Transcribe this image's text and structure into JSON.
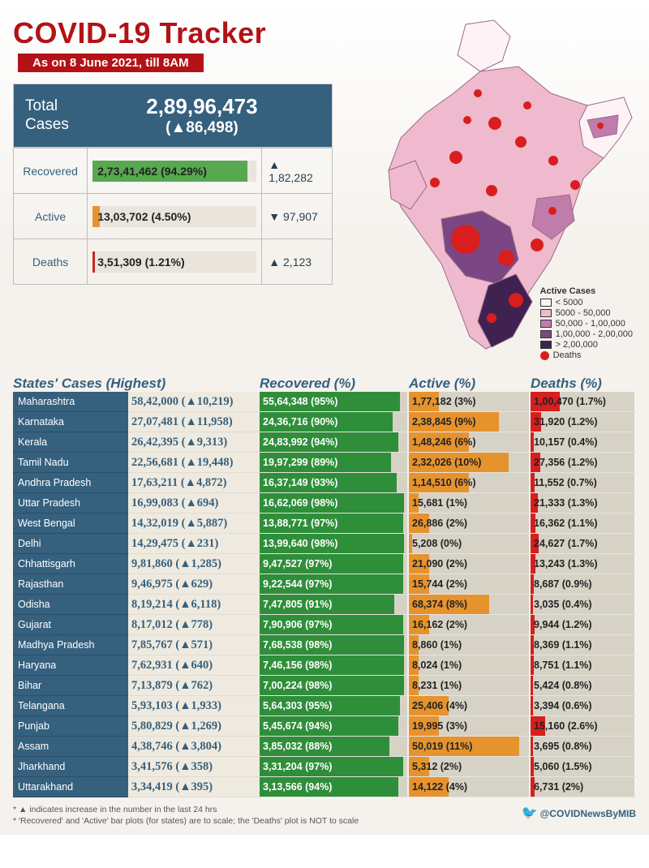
{
  "title": "COVID-19 Tracker",
  "date_band": "As on 8 June 2021, till 8AM",
  "total": {
    "label": "Total\nCases",
    "value": "2,89,96,473",
    "delta": "(▲86,498)"
  },
  "summary": [
    {
      "label": "Recovered",
      "value": "2,73,41,462 (94.29%)",
      "pct": 94.29,
      "delta": "▲ 1,82,282",
      "color": "#57a84f"
    },
    {
      "label": "Active",
      "value": "13,03,702 (4.50%)",
      "pct": 4.5,
      "delta": "▼ 97,907",
      "color": "#e6932e"
    },
    {
      "label": "Deaths",
      "value": "3,51,309 (1.21%)",
      "pct": 1.21,
      "delta": "▲ 2,123",
      "color": "#c62828"
    }
  ],
  "legend": {
    "title": "Active Cases",
    "bands": [
      {
        "label": "< 5000",
        "color": "#fef2f6"
      },
      {
        "label": "5000 - 50,000",
        "color": "#efb9ce"
      },
      {
        "label": "50,000 - 1,00,000",
        "color": "#c07dab"
      },
      {
        "label": "1,00,000 - 2,00,000",
        "color": "#7b4684"
      },
      {
        "label": "> 2,00,000",
        "color": "#3f2250"
      }
    ],
    "deaths": {
      "label": "Deaths",
      "color": "#d81e1e"
    }
  },
  "map_shading": {
    "base": "#efb9ce",
    "south_dark": "#3f2250",
    "south_mid": "#7b4684",
    "pale": "#fef2f6",
    "dot": "#d81e1e"
  },
  "headers": {
    "state": "States' Cases (Highest)",
    "recovered": "Recovered (%)",
    "active": "Active (%)",
    "deaths": "Deaths (%)"
  },
  "bar_colors": {
    "recovered": "#2f8e3a",
    "active": "#e6932e",
    "deaths": "#d81e1e",
    "track": "#d7d2c6"
  },
  "states": [
    {
      "name": "Maharashtra",
      "cases": "58,42,000",
      "delta": "10,219",
      "rec": "55,64,348",
      "rec_pct": 95,
      "act": "1,77,182",
      "act_pct": 3,
      "dth": "1,00,470",
      "dth_pct": 1.7,
      "dth_bar": 28
    },
    {
      "name": "Karnataka",
      "cases": "27,07,481",
      "delta": "11,958",
      "rec": "24,36,716",
      "rec_pct": 90,
      "act": "2,38,845",
      "act_pct": 9,
      "dth": "31,920",
      "dth_pct": 1.2,
      "dth_bar": 10
    },
    {
      "name": "Kerala",
      "cases": "26,42,395",
      "delta": "9,313",
      "rec": "24,83,992",
      "rec_pct": 94,
      "act": "1,48,246",
      "act_pct": 6,
      "dth": "10,157",
      "dth_pct": 0.4,
      "dth_bar": 3
    },
    {
      "name": "Tamil Nadu",
      "cases": "22,56,681",
      "delta": "19,448",
      "rec": "19,97,299",
      "rec_pct": 89,
      "act": "2,32,026",
      "act_pct": 10,
      "dth": "27,356",
      "dth_pct": 1.2,
      "dth_bar": 9
    },
    {
      "name": "Andhra Pradesh",
      "cases": "17,63,211",
      "delta": "4,872",
      "rec": "16,37,149",
      "rec_pct": 93,
      "act": "1,14,510",
      "act_pct": 6,
      "dth": "11,552",
      "dth_pct": 0.7,
      "dth_bar": 4
    },
    {
      "name": "Uttar Pradesh",
      "cases": "16,99,083",
      "delta": "694",
      "rec": "16,62,069",
      "rec_pct": 98,
      "act": "15,681",
      "act_pct": 1,
      "dth": "21,333",
      "dth_pct": 1.3,
      "dth_bar": 7
    },
    {
      "name": "West Bengal",
      "cases": "14,32,019",
      "delta": "5,887",
      "rec": "13,88,771",
      "rec_pct": 97,
      "act": "26,886",
      "act_pct": 2,
      "dth": "16,362",
      "dth_pct": 1.1,
      "dth_bar": 5
    },
    {
      "name": "Delhi",
      "cases": "14,29,475",
      "delta": "231",
      "rec": "13,99,640",
      "rec_pct": 98,
      "act": "5,208",
      "act_pct": 0,
      "dth": "24,627",
      "dth_pct": 1.7,
      "dth_bar": 8
    },
    {
      "name": "Chhattisgarh",
      "cases": "9,81,860",
      "delta": "1,285",
      "rec": "9,47,527",
      "rec_pct": 97,
      "act": "21,090",
      "act_pct": 2,
      "dth": "13,243",
      "dth_pct": 1.3,
      "dth_bar": 5
    },
    {
      "name": "Rajasthan",
      "cases": "9,46,975",
      "delta": "629",
      "rec": "9,22,544",
      "rec_pct": 97,
      "act": "15,744",
      "act_pct": 2,
      "dth": "8,687",
      "dth_pct": 0.9,
      "dth_bar": 3
    },
    {
      "name": "Odisha",
      "cases": "8,19,214",
      "delta": "6,118",
      "rec": "7,47,805",
      "rec_pct": 91,
      "act": "68,374",
      "act_pct": 8,
      "dth": "3,035",
      "dth_pct": 0.4,
      "dth_bar": 2
    },
    {
      "name": "Gujarat",
      "cases": "8,17,012",
      "delta": "778",
      "rec": "7,90,906",
      "rec_pct": 97,
      "act": "16,162",
      "act_pct": 2,
      "dth": "9,944",
      "dth_pct": 1.2,
      "dth_bar": 4
    },
    {
      "name": "Madhya Pradesh",
      "cases": "7,85,767",
      "delta": "571",
      "rec": "7,68,538",
      "rec_pct": 98,
      "act": "8,860",
      "act_pct": 1,
      "dth": "8,369",
      "dth_pct": 1.1,
      "dth_bar": 3
    },
    {
      "name": "Haryana",
      "cases": "7,62,931",
      "delta": "640",
      "rec": "7,46,156",
      "rec_pct": 98,
      "act": "8,024",
      "act_pct": 1,
      "dth": "8,751",
      "dth_pct": 1.1,
      "dth_bar": 3
    },
    {
      "name": "Bihar",
      "cases": "7,13,879",
      "delta": "762",
      "rec": "7,00,224",
      "rec_pct": 98,
      "act": "8,231",
      "act_pct": 1,
      "dth": "5,424",
      "dth_pct": 0.8,
      "dth_bar": 2
    },
    {
      "name": "Telangana",
      "cases": "5,93,103",
      "delta": "1,933",
      "rec": "5,64,303",
      "rec_pct": 95,
      "act": "25,406",
      "act_pct": 4,
      "dth": "3,394",
      "dth_pct": 0.6,
      "dth_bar": 2
    },
    {
      "name": "Punjab",
      "cases": "5,80,829",
      "delta": "1,269",
      "rec": "5,45,674",
      "rec_pct": 94,
      "act": "19,995",
      "act_pct": 3,
      "dth": "15,160",
      "dth_pct": 2.6,
      "dth_bar": 14
    },
    {
      "name": "Assam",
      "cases": "4,38,746",
      "delta": "3,804",
      "rec": "3,85,032",
      "rec_pct": 88,
      "act": "50,019",
      "act_pct": 11,
      "dth": "3,695",
      "dth_pct": 0.8,
      "dth_bar": 2
    },
    {
      "name": "Jharkhand",
      "cases": "3,41,576",
      "delta": "358",
      "rec": "3,31,204",
      "rec_pct": 97,
      "act": "5,312",
      "act_pct": 2,
      "dth": "5,060",
      "dth_pct": 1.5,
      "dth_bar": 3
    },
    {
      "name": "Uttarakhand",
      "cases": "3,34,419",
      "delta": "395",
      "rec": "3,13,566",
      "rec_pct": 94,
      "act": "14,122",
      "act_pct": 4,
      "dth": "6,731",
      "dth_pct": 2.0,
      "dth_bar": 4
    }
  ],
  "notes": [
    "* ▲ indicates increase in the number in the last 24 hrs",
    "* 'Recovered' and 'Active' bar plots (for states) are to scale; the 'Deaths' plot is NOT to scale"
  ],
  "handle": "@COVIDNewsByMIB"
}
